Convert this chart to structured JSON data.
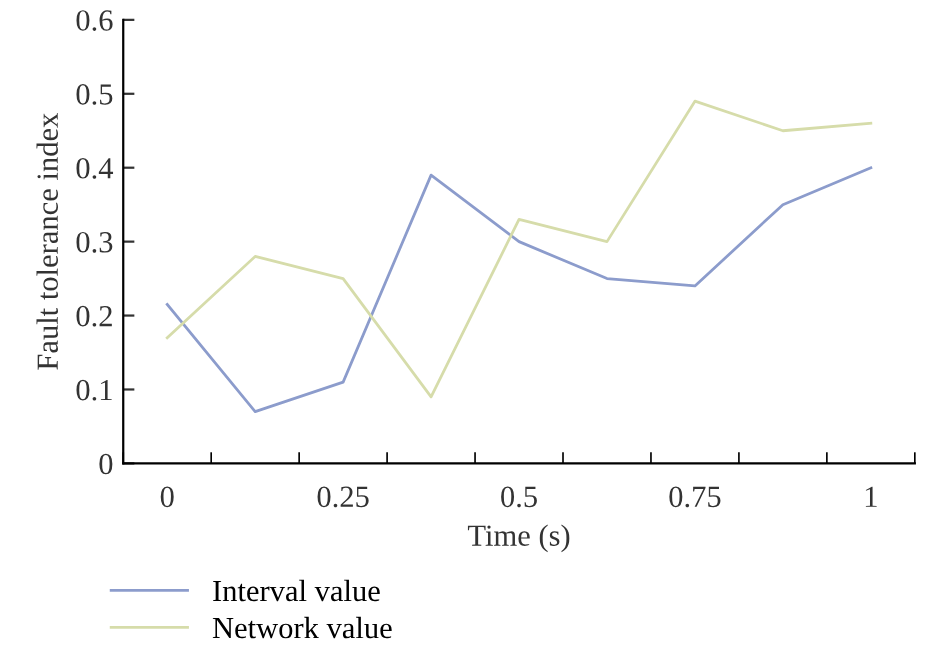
{
  "chart_data": {
    "type": "line",
    "xlabel": "Time (s)",
    "ylabel": "Fault tolerance index",
    "x": [
      0,
      0.125,
      0.25,
      0.375,
      0.5,
      0.625,
      0.75,
      0.875,
      1
    ],
    "series": [
      {
        "name": "Interval value",
        "color": "#8c9ccc",
        "values": [
          0.215,
          0.07,
          0.11,
          0.39,
          0.3,
          0.25,
          0.24,
          0.35,
          0.4
        ]
      },
      {
        "name": "Network value",
        "color": "#d6dcaa",
        "values": [
          0.17,
          0.28,
          0.25,
          0.09,
          0.33,
          0.3,
          0.49,
          0.45,
          0.46
        ]
      }
    ],
    "xlim": [
      -0.0625,
      1.0625
    ],
    "xticks": [
      {
        "value": -0.0625,
        "label": null
      },
      0,
      {
        "value": 0.0625,
        "label": null
      },
      {
        "value": 0.1875,
        "label": null
      },
      0.25,
      {
        "value": 0.3125,
        "label": null
      },
      {
        "value": 0.4375,
        "label": null
      },
      0.5,
      {
        "value": 0.5625,
        "label": null
      },
      {
        "value": 0.6875,
        "label": null
      },
      0.75,
      {
        "value": 0.8125,
        "label": null
      },
      {
        "value": 0.9375,
        "label": null
      },
      1,
      {
        "value": 1.0625,
        "label": null
      }
    ],
    "ylim": [
      0,
      0.6
    ],
    "yticks": [
      0,
      0.1,
      0.2,
      0.3,
      0.4,
      0.5,
      0.6
    ],
    "grid": false,
    "legend": "bottom left",
    "marker": "none",
    "line_style": "solid"
  }
}
